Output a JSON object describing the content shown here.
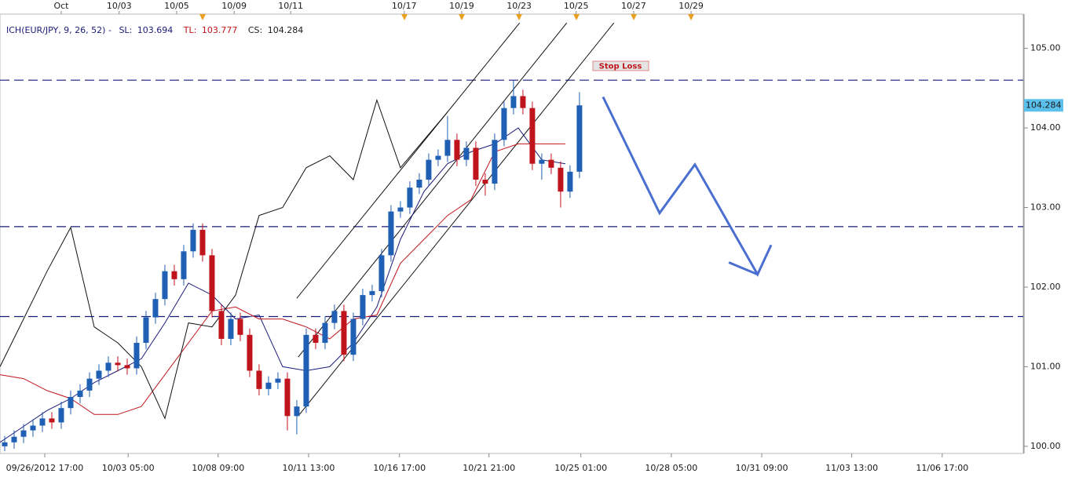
{
  "chart_data": {
    "type": "candlestick",
    "legend": {
      "indicator": "ICH(EUR/JPY, 9, 26, 52)  -",
      "entries": [
        {
          "label": "SL:",
          "value": 103.694,
          "color": "#1b1b7a"
        },
        {
          "label": "TL:",
          "value": 103.777,
          "color": "#c0141c"
        },
        {
          "label": "CS:",
          "value": 104.284,
          "color": "#1a1a1a"
        }
      ]
    },
    "xlim": [
      0,
      216.7
    ],
    "ylim": [
      99.91,
      105.43
    ],
    "xticks": [
      {
        "value": 9.5,
        "label": "09/26/2012 17:00"
      },
      {
        "value": 27.2,
        "label": "10/03 05:00"
      },
      {
        "value": 46.3,
        "label": "10/08 09:00"
      },
      {
        "value": 65.5,
        "label": "10/11 13:00"
      },
      {
        "value": 84.8,
        "label": "10/16 17:00"
      },
      {
        "value": 103.8,
        "label": "10/21 21:00"
      },
      {
        "value": 123.3,
        "label": "10/25 01:00"
      },
      {
        "value": 142.5,
        "label": "10/28 05:00"
      },
      {
        "value": 161.7,
        "label": "10/31 09:00"
      },
      {
        "value": 180.8,
        "label": "11/03 13:00"
      },
      {
        "value": 200,
        "label": "11/06 17:00"
      }
    ],
    "x2ticks": [
      {
        "value": 13,
        "label": "Oct"
      },
      {
        "value": 25.3,
        "label": "10/03"
      },
      {
        "value": 37.5,
        "label": "10/05"
      },
      {
        "value": 49.7,
        "label": "10/09"
      },
      {
        "value": 61.7,
        "label": "10/11"
      },
      {
        "value": 85.8,
        "label": "10/17"
      },
      {
        "value": 98,
        "label": "10/19"
      },
      {
        "value": 110.2,
        "label": "10/23"
      },
      {
        "value": 122.3,
        "label": "10/25"
      },
      {
        "value": 134.5,
        "label": "10/27"
      },
      {
        "value": 146.7,
        "label": "10/29"
      }
    ],
    "yticks": [
      {
        "value": 100,
        "label": "100.00"
      },
      {
        "value": 101,
        "label": "101.00"
      },
      {
        "value": 102,
        "label": "102.00"
      },
      {
        "value": 103,
        "label": "103.00"
      },
      {
        "value": 104,
        "label": "104.00"
      },
      {
        "value": 105,
        "label": "105.00"
      }
    ],
    "up_color": "#1f5fb4",
    "down_color": "#c0141c",
    "candles": {
      "x": [
        1,
        3,
        5,
        7,
        9,
        11,
        13,
        15,
        17,
        19,
        21,
        23,
        25,
        27,
        29,
        31,
        33,
        35,
        37,
        39,
        41,
        43,
        45,
        47,
        49,
        51,
        53,
        55,
        57,
        59,
        61,
        63,
        65,
        67,
        69,
        71,
        73,
        75,
        77,
        79,
        81,
        83,
        85,
        87,
        89,
        91,
        93,
        95,
        97,
        99,
        101,
        103,
        105,
        107,
        109,
        111,
        113,
        115,
        117,
        119,
        121,
        123
      ],
      "open": [
        100.0,
        100.05,
        100.12,
        100.2,
        100.26,
        100.35,
        100.3,
        100.48,
        100.62,
        100.7,
        100.85,
        100.95,
        101.05,
        101.02,
        100.98,
        101.3,
        101.62,
        101.85,
        102.2,
        102.1,
        102.45,
        102.72,
        102.4,
        101.7,
        101.35,
        101.6,
        101.4,
        100.95,
        100.72,
        100.8,
        100.85,
        100.38,
        100.5,
        101.4,
        101.3,
        101.55,
        101.7,
        101.15,
        101.6,
        101.9,
        101.95,
        102.4,
        102.95,
        103.0,
        103.25,
        103.35,
        103.6,
        103.65,
        103.85,
        103.6,
        103.75,
        103.35,
        103.3,
        103.85,
        104.25,
        104.4,
        104.25,
        103.55,
        103.6,
        103.5,
        103.2,
        103.45
      ],
      "high": [
        100.13,
        100.2,
        100.28,
        100.34,
        100.43,
        100.43,
        100.56,
        100.7,
        100.78,
        100.93,
        101.03,
        101.13,
        101.13,
        101.1,
        101.38,
        101.7,
        101.93,
        102.28,
        102.28,
        102.53,
        102.8,
        102.8,
        102.48,
        101.78,
        101.68,
        101.68,
        101.48,
        101.03,
        100.88,
        100.93,
        100.93,
        100.58,
        101.48,
        101.48,
        101.63,
        101.78,
        101.78,
        101.68,
        101.98,
        102.03,
        102.48,
        103.03,
        103.08,
        103.33,
        103.43,
        103.68,
        103.73,
        104.15,
        103.93,
        103.83,
        103.83,
        103.43,
        103.93,
        104.33,
        104.6,
        104.48,
        104.33,
        103.68,
        103.68,
        103.58,
        103.53,
        104.45
      ],
      "low": [
        99.94,
        99.97,
        100.04,
        100.12,
        100.18,
        100.22,
        100.22,
        100.4,
        100.54,
        100.62,
        100.77,
        100.87,
        100.94,
        100.9,
        100.9,
        101.22,
        101.54,
        101.77,
        102.02,
        102.02,
        102.37,
        102.32,
        101.62,
        101.27,
        101.27,
        101.32,
        100.87,
        100.64,
        100.64,
        100.72,
        100.2,
        100.15,
        100.42,
        101.22,
        101.22,
        101.47,
        101.07,
        101.07,
        101.52,
        101.82,
        101.87,
        102.32,
        102.87,
        102.92,
        103.17,
        103.27,
        103.52,
        103.57,
        103.52,
        103.52,
        103.27,
        103.15,
        103.22,
        103.77,
        104.17,
        104.17,
        103.47,
        103.35,
        103.42,
        103.0,
        103.12,
        103.37
      ],
      "close": [
        100.05,
        100.12,
        100.2,
        100.26,
        100.35,
        100.3,
        100.48,
        100.62,
        100.7,
        100.85,
        100.95,
        101.05,
        101.02,
        100.98,
        101.3,
        101.62,
        101.85,
        102.2,
        102.1,
        102.45,
        102.72,
        102.4,
        101.7,
        101.35,
        101.6,
        101.4,
        100.95,
        100.72,
        100.8,
        100.85,
        100.38,
        100.5,
        101.4,
        101.3,
        101.55,
        101.7,
        101.15,
        101.6,
        101.9,
        101.95,
        102.4,
        102.95,
        103.0,
        103.25,
        103.35,
        103.6,
        103.65,
        103.85,
        103.6,
        103.75,
        103.35,
        103.3,
        103.85,
        104.25,
        104.4,
        104.25,
        103.55,
        103.6,
        103.5,
        103.2,
        103.45,
        104.284
      ]
    },
    "x": [
      0,
      5,
      10,
      15,
      20,
      25,
      30,
      35,
      40,
      45,
      50,
      55,
      60,
      65,
      70,
      75,
      80,
      85,
      90,
      95,
      100,
      105,
      110,
      115,
      120
    ],
    "series": [
      {
        "color": "#1b1b7a",
        "values": [
          100.05,
          100.25,
          100.45,
          100.6,
          100.8,
          100.95,
          101.1,
          101.55,
          102.05,
          101.9,
          101.6,
          101.65,
          101.0,
          100.95,
          101.0,
          101.3,
          101.75,
          102.6,
          103.2,
          103.55,
          103.7,
          103.8,
          104.0,
          103.6,
          103.55
        ]
      },
      {
        "color": "#c0141c",
        "values": [
          100.9,
          100.85,
          100.7,
          100.6,
          100.4,
          100.4,
          100.5,
          100.9,
          101.3,
          101.7,
          101.75,
          101.6,
          101.6,
          101.5,
          101.35,
          101.6,
          101.65,
          102.3,
          102.6,
          102.9,
          103.1,
          103.7,
          103.8,
          103.8,
          103.8
        ]
      },
      {
        "color": "#111111",
        "values": [
          101.0,
          101.6,
          102.2,
          102.75,
          101.5,
          101.3,
          101.0,
          100.35,
          101.55,
          101.5,
          101.9,
          102.9,
          103.0,
          103.5,
          103.65,
          103.35,
          104.35,
          103.5,
          103.85,
          104.2,
          null,
          null,
          null,
          null,
          null
        ]
      }
    ],
    "channel": [
      {
        "x": [
          63,
          110.3
        ],
        "values": [
          101.86,
          105.32
        ]
      },
      {
        "x": [
          63.3,
          120.3
        ],
        "values": [
          101.12,
          105.32
        ]
      },
      {
        "x": [
          63.3,
          130.3
        ],
        "values": [
          100.38,
          105.32
        ]
      }
    ],
    "levels": [
      104.6,
      102.76,
      101.63
    ],
    "forecast": {
      "color": "#4a6fd0",
      "x": [
        128,
        140,
        147.5,
        160.8,
        163.7
      ],
      "values": [
        104.39,
        102.93,
        103.54,
        102.16,
        102.53
      ],
      "head_x": [
        154.7,
        160.8
      ],
      "head_values": [
        102.31,
        102.16
      ]
    },
    "annotation": "Stop Loss",
    "last_price": 104.284
  }
}
